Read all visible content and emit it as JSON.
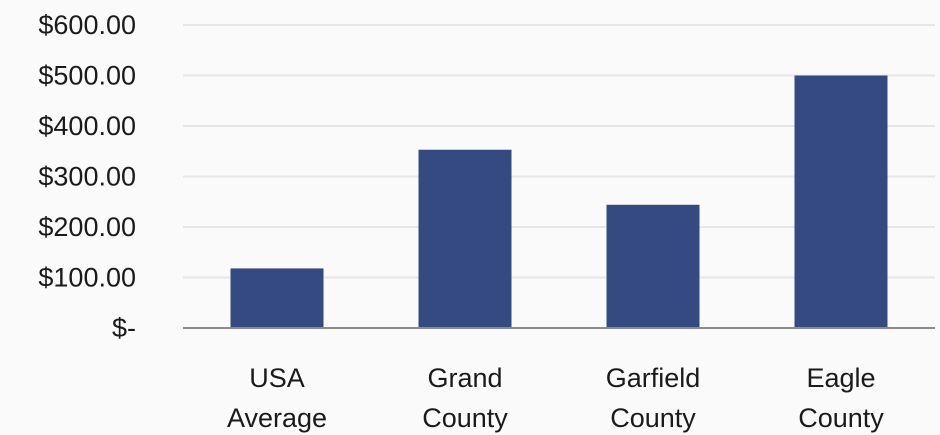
{
  "chart_data": {
    "type": "bar",
    "categories": [
      [
        "USA",
        "Average"
      ],
      [
        "Grand",
        "County"
      ],
      [
        "Garfield",
        "County"
      ],
      [
        "Eagle",
        "County"
      ]
    ],
    "values": [
      118,
      353,
      244,
      500
    ],
    "ylim": [
      0,
      600
    ],
    "y_ticks": [
      0,
      100,
      200,
      300,
      400,
      500,
      600
    ],
    "y_tick_labels": [
      "$-",
      "$100.00",
      "$200.00",
      "$300.00",
      "$400.00",
      "$500.00",
      "$600.00"
    ],
    "grid": true,
    "legend": "none",
    "title": "",
    "xlabel": "",
    "ylabel": "",
    "colors": {
      "bar": "#344a80",
      "grid": "#e6e6e6",
      "axis": "#8c8c8c"
    }
  }
}
